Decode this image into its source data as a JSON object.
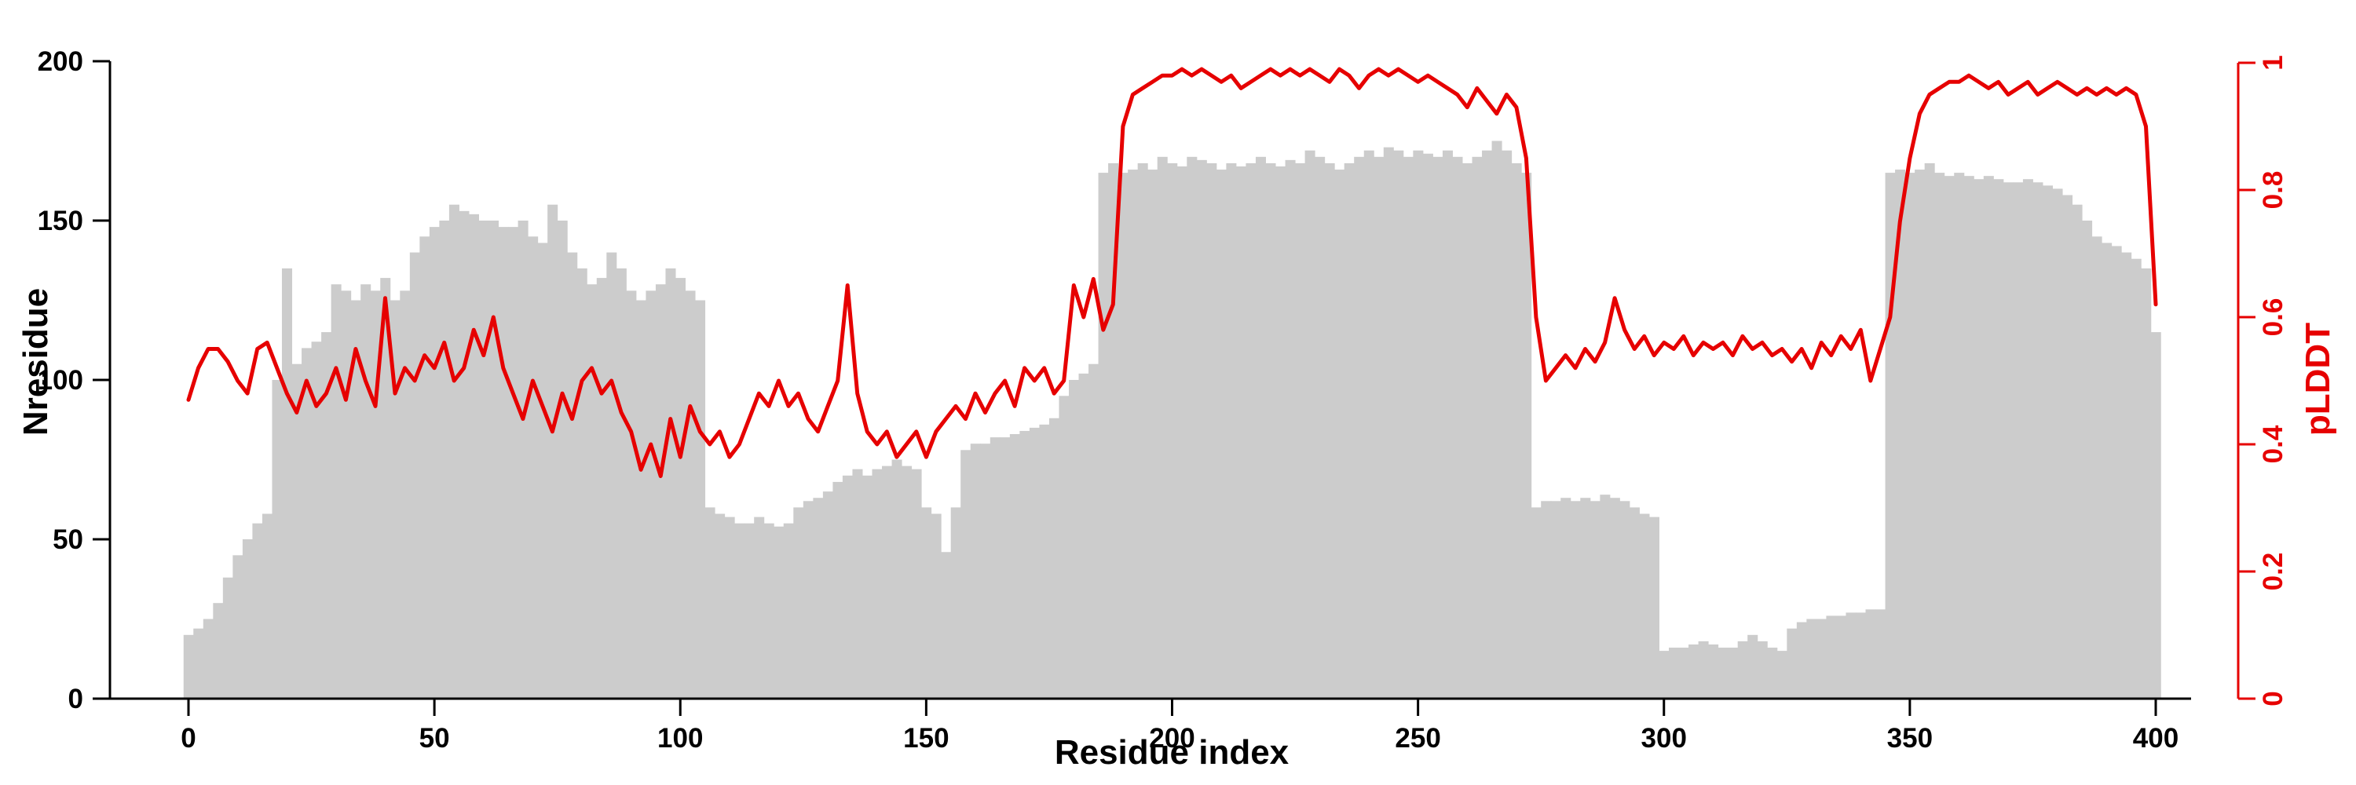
{
  "figure": {
    "background": "#ffffff",
    "bar_color": "#cccccc",
    "line_color": "#e60000",
    "left_axis_color": "#000000",
    "right_axis_color": "#e60000"
  },
  "chart_data": {
    "type": "bar+line",
    "title": "",
    "xlabel": "Residue index",
    "ylabel_left": "Nresidue",
    "ylabel_right": "pLDDT",
    "xlim": [
      0,
      400
    ],
    "ylim_left": [
      0,
      200
    ],
    "ylim_right": [
      0,
      1
    ],
    "x_ticks": [
      0,
      50,
      100,
      150,
      200,
      250,
      300,
      350,
      400
    ],
    "y_left_ticks": [
      0,
      50,
      100,
      150,
      200
    ],
    "y_right_ticks": [
      0,
      0.2,
      0.4,
      0.6,
      0.8,
      1
    ],
    "grid": false,
    "legend": "none",
    "x_start": 0,
    "x_step": 2,
    "series": [
      {
        "name": "Nresidue",
        "type": "bar",
        "axis": "left",
        "color": "#cccccc",
        "values": [
          20,
          22,
          25,
          30,
          38,
          45,
          50,
          55,
          58,
          100,
          135,
          105,
          110,
          112,
          115,
          130,
          128,
          125,
          130,
          128,
          132,
          125,
          128,
          140,
          145,
          148,
          150,
          155,
          153,
          152,
          150,
          150,
          148,
          148,
          150,
          145,
          143,
          155,
          150,
          140,
          135,
          130,
          132,
          140,
          135,
          128,
          125,
          128,
          130,
          135,
          132,
          128,
          125,
          60,
          58,
          57,
          55,
          55,
          57,
          55,
          54,
          55,
          60,
          62,
          63,
          65,
          68,
          70,
          72,
          70,
          72,
          73,
          75,
          73,
          72,
          60,
          58,
          46,
          60,
          78,
          80,
          80,
          82,
          82,
          83,
          84,
          85,
          86,
          88,
          95,
          100,
          102,
          105,
          165,
          168,
          165,
          166,
          168,
          166,
          170,
          168,
          167,
          170,
          169,
          168,
          166,
          168,
          167,
          168,
          170,
          168,
          167,
          169,
          168,
          172,
          170,
          168,
          166,
          168,
          170,
          172,
          170,
          173,
          172,
          170,
          172,
          171,
          170,
          172,
          170,
          168,
          170,
          172,
          175,
          172,
          168,
          165,
          60,
          62,
          62,
          63,
          62,
          63,
          62,
          64,
          63,
          62,
          60,
          58,
          57,
          15,
          16,
          16,
          17,
          18,
          17,
          16,
          16,
          18,
          20,
          18,
          16,
          15,
          22,
          24,
          25,
          25,
          26,
          26,
          27,
          27,
          28,
          28,
          165,
          166,
          165,
          166,
          168,
          165,
          164,
          165,
          164,
          163,
          164,
          163,
          162,
          162,
          163,
          162,
          161,
          160,
          158,
          155,
          150,
          145,
          143,
          142,
          140,
          138,
          135,
          115
        ]
      },
      {
        "name": "pLDDT",
        "type": "line",
        "axis": "right",
        "color": "#e60000",
        "values": [
          0.47,
          0.52,
          0.55,
          0.55,
          0.53,
          0.5,
          0.48,
          0.55,
          0.56,
          0.52,
          0.48,
          0.45,
          0.5,
          0.46,
          0.48,
          0.52,
          0.47,
          0.55,
          0.5,
          0.46,
          0.63,
          0.48,
          0.52,
          0.5,
          0.54,
          0.52,
          0.56,
          0.5,
          0.52,
          0.58,
          0.54,
          0.6,
          0.52,
          0.48,
          0.44,
          0.5,
          0.46,
          0.42,
          0.48,
          0.44,
          0.5,
          0.52,
          0.48,
          0.5,
          0.45,
          0.42,
          0.36,
          0.4,
          0.35,
          0.44,
          0.38,
          0.46,
          0.42,
          0.4,
          0.42,
          0.38,
          0.4,
          0.44,
          0.48,
          0.46,
          0.5,
          0.46,
          0.48,
          0.44,
          0.42,
          0.46,
          0.5,
          0.65,
          0.48,
          0.42,
          0.4,
          0.42,
          0.38,
          0.4,
          0.42,
          0.38,
          0.42,
          0.44,
          0.46,
          0.44,
          0.48,
          0.45,
          0.48,
          0.5,
          0.46,
          0.52,
          0.5,
          0.52,
          0.48,
          0.5,
          0.65,
          0.6,
          0.66,
          0.58,
          0.62,
          0.9,
          0.95,
          0.96,
          0.97,
          0.98,
          0.98,
          0.99,
          0.98,
          0.99,
          0.98,
          0.97,
          0.98,
          0.96,
          0.97,
          0.98,
          0.99,
          0.98,
          0.99,
          0.98,
          0.99,
          0.98,
          0.97,
          0.99,
          0.98,
          0.96,
          0.98,
          0.99,
          0.98,
          0.99,
          0.98,
          0.97,
          0.98,
          0.97,
          0.96,
          0.95,
          0.93,
          0.96,
          0.94,
          0.92,
          0.95,
          0.93,
          0.85,
          0.6,
          0.5,
          0.52,
          0.54,
          0.52,
          0.55,
          0.53,
          0.56,
          0.63,
          0.58,
          0.55,
          0.57,
          0.54,
          0.56,
          0.55,
          0.57,
          0.54,
          0.56,
          0.55,
          0.56,
          0.54,
          0.57,
          0.55,
          0.56,
          0.54,
          0.55,
          0.53,
          0.55,
          0.52,
          0.56,
          0.54,
          0.57,
          0.55,
          0.58,
          0.5,
          0.55,
          0.6,
          0.75,
          0.85,
          0.92,
          0.95,
          0.96,
          0.97,
          0.97,
          0.98,
          0.97,
          0.96,
          0.97,
          0.95,
          0.96,
          0.97,
          0.95,
          0.96,
          0.97,
          0.96,
          0.95,
          0.96,
          0.95,
          0.96,
          0.95,
          0.96,
          0.95,
          0.9,
          0.62
        ]
      }
    ]
  }
}
